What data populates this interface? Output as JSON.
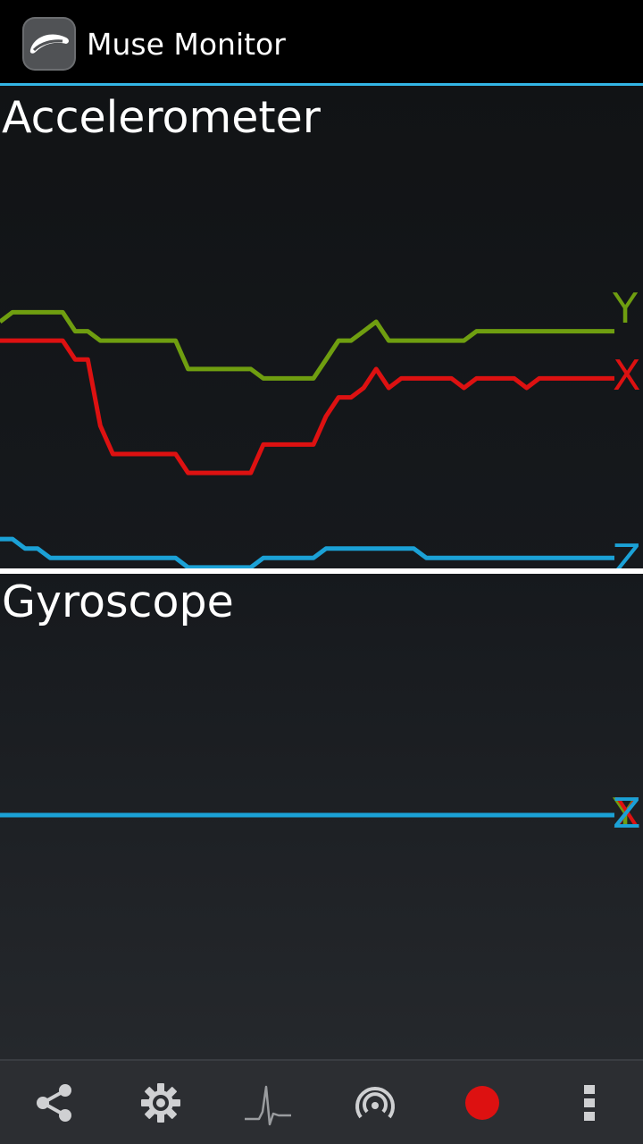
{
  "app": {
    "title": "Muse Monitor"
  },
  "colors": {
    "x": "#dd1111",
    "y": "#6f9e10",
    "z": "#1ba1d6",
    "accent": "#33b5e5"
  },
  "accelerometer": {
    "title": "Accelerometer",
    "labels": {
      "x": "X",
      "y": "Y",
      "z": "Z"
    },
    "chart_data": {
      "type": "line",
      "x_count": 50,
      "series": [
        {
          "name": "X",
          "values": [
            86,
            86,
            86,
            86,
            86,
            86,
            84,
            84,
            77,
            74,
            74,
            74,
            74,
            74,
            74,
            72,
            72,
            72,
            72,
            72,
            72,
            75,
            75,
            75,
            75,
            75,
            78,
            80,
            80,
            81,
            83,
            81,
            82,
            82,
            82,
            82,
            82,
            81,
            82,
            82,
            82,
            82,
            81,
            82,
            82,
            82,
            82,
            82,
            82,
            82
          ]
        },
        {
          "name": "Y",
          "values": [
            88,
            89,
            89,
            89,
            89,
            89,
            87,
            87,
            86,
            86,
            86,
            86,
            86,
            86,
            86,
            83,
            83,
            83,
            83,
            83,
            83,
            82,
            82,
            82,
            82,
            82,
            84,
            86,
            86,
            87,
            88,
            86,
            86,
            86,
            86,
            86,
            86,
            86,
            87,
            87,
            87,
            87,
            87,
            87,
            87,
            87,
            87,
            87,
            87,
            87
          ]
        },
        {
          "name": "Z",
          "values": [
            65,
            65,
            64,
            64,
            63,
            63,
            63,
            63,
            63,
            63,
            63,
            63,
            63,
            63,
            63,
            62,
            62,
            62,
            62,
            62,
            62,
            63,
            63,
            63,
            63,
            63,
            64,
            64,
            64,
            64,
            64,
            64,
            64,
            64,
            63,
            63,
            63,
            63,
            63,
            63,
            63,
            63,
            63,
            63,
            63,
            63,
            63,
            63,
            63,
            63
          ]
        }
      ]
    }
  },
  "gyroscope": {
    "title": "Gyroscope",
    "labels": {
      "x": "X",
      "y": "Y",
      "z": "Z"
    },
    "chart_data": {
      "type": "line",
      "x_count": 50,
      "series": [
        {
          "name": "X",
          "values": [
            10,
            10,
            10,
            10,
            10,
            10,
            10,
            10,
            10,
            10,
            10,
            10,
            10,
            10,
            10,
            10,
            10,
            10,
            10,
            10,
            10,
            10,
            10,
            10,
            10,
            10,
            10,
            10,
            10,
            10,
            10,
            10,
            10,
            10,
            10,
            10,
            10,
            10,
            10,
            10,
            10,
            10,
            10,
            10,
            10,
            10,
            10,
            10,
            10,
            10
          ]
        },
        {
          "name": "Y",
          "values": [
            10,
            10,
            10,
            10,
            10,
            10,
            10,
            10,
            10,
            10,
            10,
            10,
            10,
            10,
            10,
            10,
            10,
            10,
            10,
            10,
            10,
            10,
            10,
            10,
            10,
            10,
            10,
            10,
            10,
            10,
            10,
            10,
            10,
            10,
            10,
            10,
            10,
            10,
            10,
            10,
            10,
            10,
            10,
            10,
            10,
            10,
            10,
            10,
            10,
            10
          ]
        },
        {
          "name": "Z",
          "values": [
            10,
            10,
            10,
            10,
            10,
            10,
            10,
            10,
            10,
            10,
            10,
            10,
            10,
            10,
            10,
            10,
            10,
            10,
            10,
            10,
            10,
            10,
            10,
            10,
            10,
            10,
            10,
            10,
            10,
            10,
            10,
            10,
            10,
            10,
            10,
            10,
            10,
            10,
            10,
            10,
            10,
            10,
            10,
            10,
            10,
            10,
            10,
            10,
            10,
            10
          ]
        }
      ]
    }
  },
  "toolbar": {
    "items": [
      {
        "icon": "share-icon"
      },
      {
        "icon": "gear-icon"
      },
      {
        "icon": "waveform-icon"
      },
      {
        "icon": "broadcast-icon"
      },
      {
        "icon": "record-icon"
      },
      {
        "icon": "overflow-menu-icon"
      }
    ]
  }
}
